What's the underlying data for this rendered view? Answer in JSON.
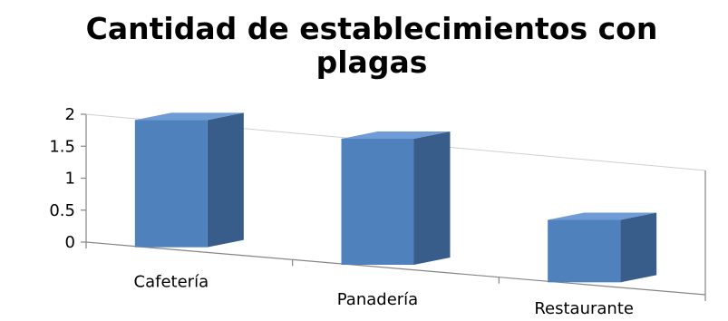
{
  "chart_data": {
    "type": "bar",
    "title_lines": [
      "Cantidad de establecimientos con",
      "plagas"
    ],
    "categories": [
      "Cafetería",
      "Panadería",
      "Restaurante"
    ],
    "values": [
      2,
      2,
      1
    ],
    "yticks": [
      "0",
      "0.5",
      "1",
      "1.5",
      "2"
    ],
    "ylim": [
      0,
      2
    ],
    "xlabel": "",
    "ylabel": "",
    "legend": "none",
    "three_d": true,
    "grid": false,
    "colors": {
      "bar_front": "#4f81bd",
      "bar_side": "#385d8a",
      "bar_top": "#6f9bd6",
      "axis": "#868686",
      "text": "#000000"
    }
  }
}
